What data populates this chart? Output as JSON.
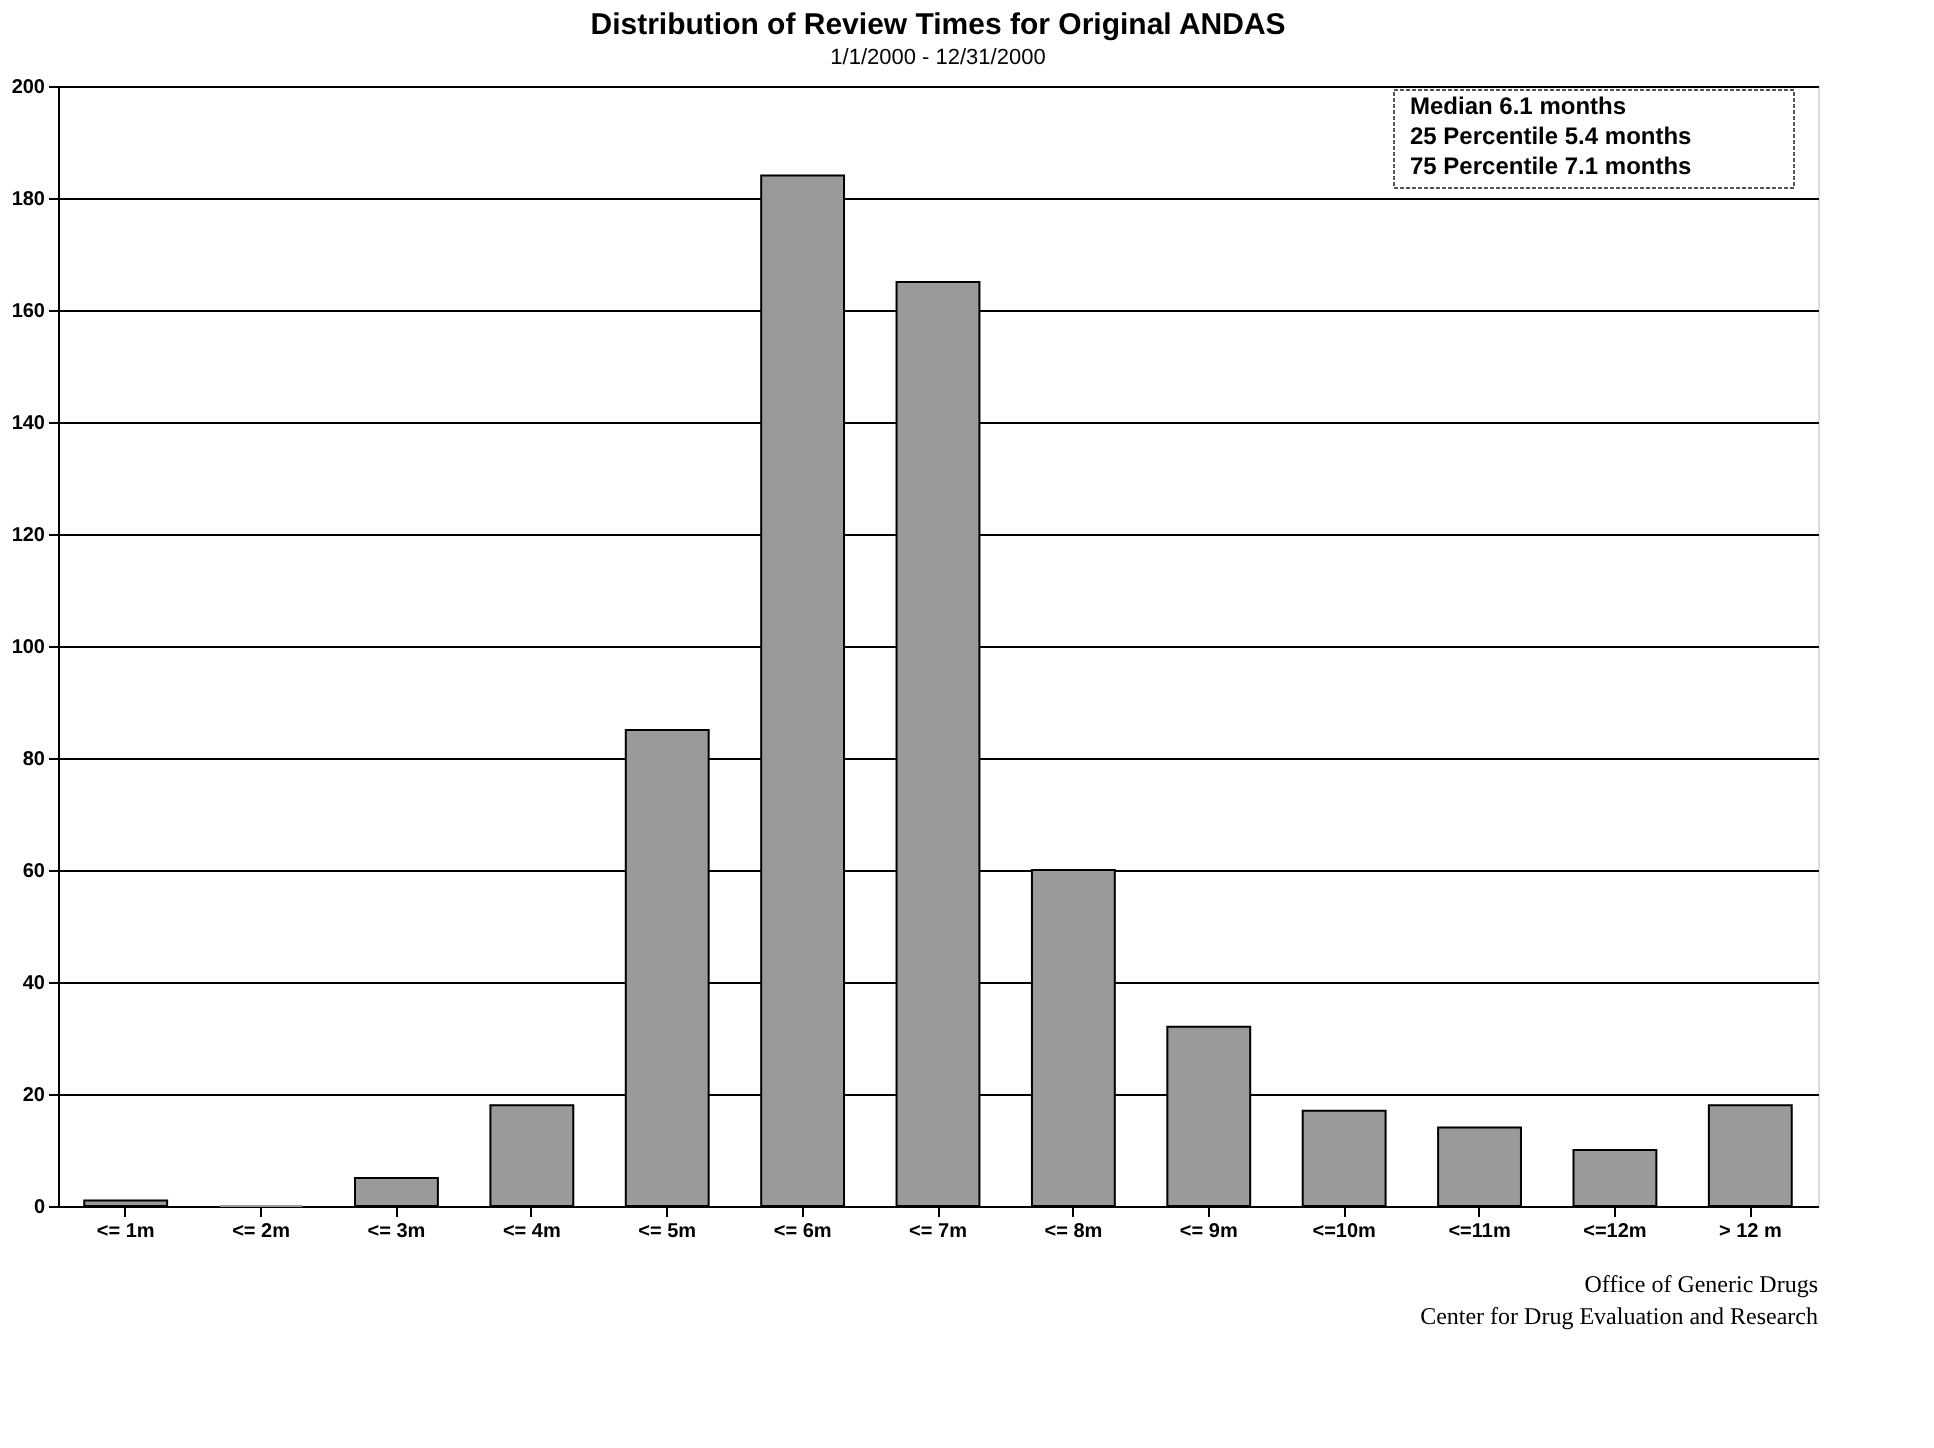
{
  "chart_data": {
    "type": "bar",
    "title": "Distribution of Review Times for Original ANDAS",
    "subtitle": "1/1/2000 - 12/31/2000",
    "categories": [
      "<= 1m",
      "<= 2m",
      "<= 3m",
      "<= 4m",
      "<= 5m",
      "<= 6m",
      "<= 7m",
      "<= 8m",
      "<= 9m",
      "<=10m",
      "<=11m",
      "<=12m",
      "> 12 m"
    ],
    "values": [
      1,
      0,
      5,
      18,
      85,
      184,
      165,
      60,
      32,
      17,
      14,
      10,
      18
    ],
    "color": "#9a9a9a",
    "ylim": [
      0,
      200
    ],
    "yticks": [
      0,
      20,
      40,
      60,
      80,
      100,
      120,
      140,
      160,
      180,
      200
    ],
    "grid": "y",
    "annotations": [
      "Median          6.1 months",
      "25 Percentile  5.4 months",
      "75 Percentile  7.1 months",
      "Office of Generic Drugs",
      "Center for Drug Evaluation and Research"
    ]
  }
}
